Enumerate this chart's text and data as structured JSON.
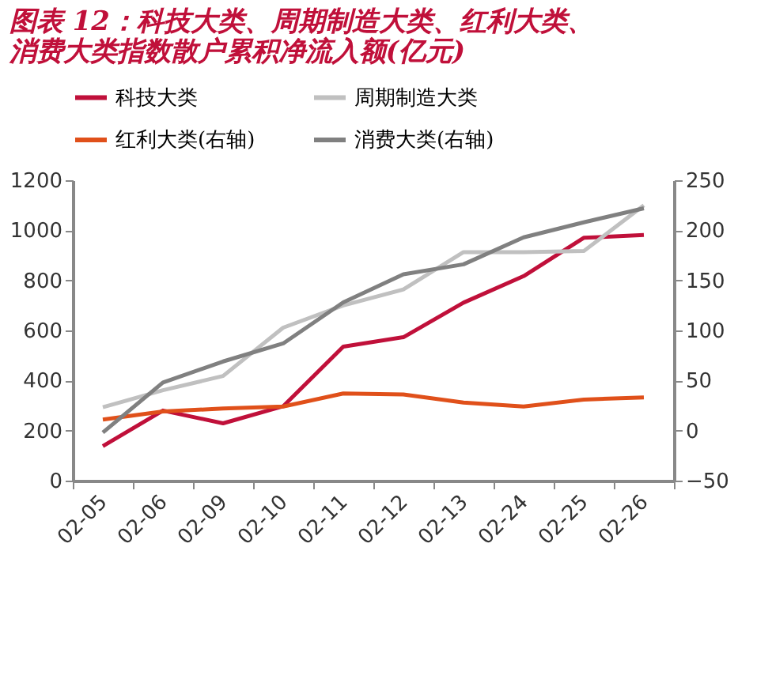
{
  "chart_data": {
    "type": "line",
    "title": "图表 12：科技大类、周期制造大类、红利大类、消费大类指数散户累积净流入额(亿元)",
    "categories": [
      "02-05",
      "02-06",
      "02-09",
      "02-10",
      "02-11",
      "02-12",
      "02-13",
      "02-24",
      "02-25",
      "02-26"
    ],
    "series": [
      {
        "name": "科技大类",
        "color": "#c0103a",
        "values": [
          138,
          280,
          229,
          297,
          535,
          573,
          711,
          817,
          970,
          981
        ]
      },
      {
        "name": "周期制造大类",
        "color": "#c0c0c0",
        "values": [
          293,
          361,
          418,
          611,
          700,
          764,
          913,
          913,
          917,
          1100
        ]
      },
      {
        "name": "红利大类(右轴)",
        "color": "#e0501a",
        "axis": "y2",
        "values": [
          11,
          19,
          22,
          24,
          37,
          36,
          28,
          24,
          31,
          33
        ]
      },
      {
        "name": "消费大类(右轴)",
        "color": "#808080",
        "axis": "y2",
        "values": [
          -2,
          48,
          69,
          87,
          128,
          156,
          166,
          193,
          208,
          222
        ]
      }
    ],
    "ylim": [
      0,
      1200
    ],
    "yticks": [
      0,
      200,
      400,
      600,
      800,
      1000,
      1200
    ],
    "y2lim": [
      -50,
      250
    ],
    "y2ticks": [
      -50,
      0,
      50,
      100,
      150,
      200,
      250
    ],
    "grid": false,
    "legend": "top",
    "marker": "none",
    "line_style": "solid"
  }
}
